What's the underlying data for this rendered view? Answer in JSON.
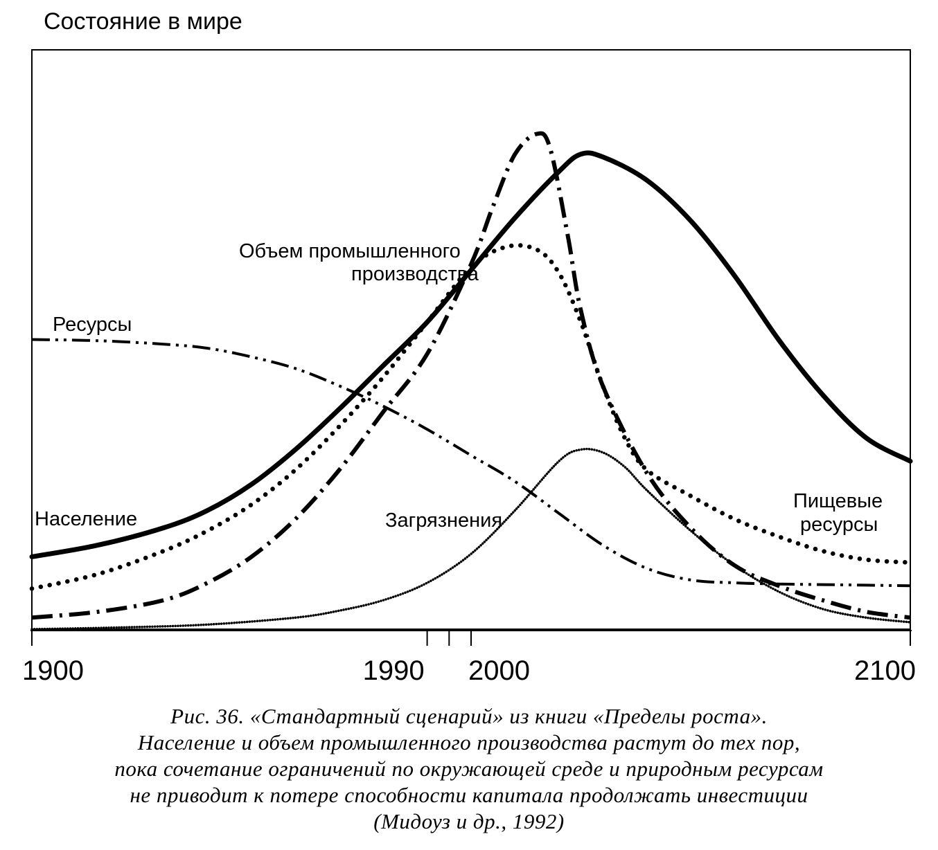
{
  "chart_data": {
    "type": "line",
    "title": "",
    "ylabel": "Состояние в мире",
    "xlabel": "",
    "xlim": [
      1900,
      2100
    ],
    "ylim": [
      0,
      1
    ],
    "x_ticks": [
      1900,
      1990,
      1995,
      2000,
      2100
    ],
    "x_tick_labels": [
      "1900",
      "1990",
      "",
      "2000",
      "2100"
    ],
    "grid": false,
    "legend": "none (series labeled directly on chart)",
    "series": [
      {
        "name": "Население",
        "style": "solid-thick",
        "x": [
          1900,
          1915,
          1930,
          1940,
          1950,
          1960,
          1970,
          1980,
          1990,
          2000,
          2010,
          2020,
          2025,
          2030,
          2040,
          2050,
          2060,
          2070,
          2080,
          2090,
          2100
        ],
        "y": [
          0.125,
          0.145,
          0.175,
          0.205,
          0.25,
          0.31,
          0.38,
          0.455,
          0.53,
          0.62,
          0.71,
          0.79,
          0.82,
          0.815,
          0.775,
          0.705,
          0.61,
          0.5,
          0.405,
          0.33,
          0.29
        ]
      },
      {
        "name": "Пищевые ресурсы",
        "style": "dotted",
        "x": [
          1900,
          1915,
          1930,
          1940,
          1950,
          1960,
          1970,
          1980,
          1990,
          2000,
          2008,
          2015,
          2020,
          2025,
          2030,
          2035,
          2040,
          2050,
          2060,
          2070,
          2080,
          2090,
          2100
        ],
        "y": [
          0.07,
          0.095,
          0.135,
          0.17,
          0.215,
          0.275,
          0.35,
          0.435,
          0.53,
          0.625,
          0.66,
          0.655,
          0.615,
          0.53,
          0.42,
          0.33,
          0.275,
          0.23,
          0.19,
          0.16,
          0.135,
          0.12,
          0.115
        ]
      },
      {
        "name": "Объем промышленного производства",
        "style": "dash-dot-thick",
        "x": [
          1900,
          1915,
          1930,
          1940,
          1950,
          1960,
          1970,
          1980,
          1990,
          2000,
          2005,
          2010,
          2015,
          2018,
          2022,
          2025,
          2030,
          2040,
          2050,
          2060,
          2070,
          2080,
          2090,
          2100
        ],
        "y": [
          0.02,
          0.03,
          0.05,
          0.08,
          0.125,
          0.19,
          0.275,
          0.375,
          0.475,
          0.63,
          0.73,
          0.82,
          0.855,
          0.83,
          0.68,
          0.55,
          0.42,
          0.27,
          0.175,
          0.11,
          0.075,
          0.05,
          0.03,
          0.02
        ]
      },
      {
        "name": "Ресурсы",
        "style": "dash-dot-dot",
        "x": [
          1900,
          1915,
          1930,
          1940,
          1950,
          1960,
          1970,
          1980,
          1990,
          2000,
          2010,
          2020,
          2030,
          2040,
          2050,
          2060,
          2070,
          2080,
          2090,
          2100
        ],
        "y": [
          0.5,
          0.498,
          0.492,
          0.485,
          0.47,
          0.45,
          0.42,
          0.385,
          0.345,
          0.3,
          0.255,
          0.2,
          0.145,
          0.105,
          0.085,
          0.08,
          0.078,
          0.077,
          0.076,
          0.075
        ]
      },
      {
        "name": "Загрязнения",
        "style": "fine-dotted",
        "x": [
          1900,
          1920,
          1940,
          1960,
          1970,
          1980,
          1990,
          2000,
          2010,
          2020,
          2025,
          2030,
          2035,
          2040,
          2050,
          2060,
          2070,
          2080,
          2090,
          2100
        ],
        "y": [
          0.0,
          0.003,
          0.008,
          0.02,
          0.032,
          0.05,
          0.08,
          0.13,
          0.205,
          0.29,
          0.31,
          0.305,
          0.28,
          0.24,
          0.17,
          0.11,
          0.065,
          0.035,
          0.02,
          0.012
        ]
      }
    ]
  },
  "labels": {
    "population": "Население",
    "food": [
      "Пищевые",
      "ресурсы"
    ],
    "industry": [
      "Объем промышленного",
      "производства"
    ],
    "resources": "Ресурсы",
    "pollution": "Загрязнения"
  },
  "caption": [
    "Рис. 36. «Стандартный сценарий» из книги «Пределы роста».",
    "Население и объем промышленного производства растут до тех пор,",
    "пока сочетание ограничений по окружающей среде и природным ресурсам",
    "не приводит к потере способности капитала продолжать инвестиции",
    "(Мидоуз и др., 1992)"
  ],
  "colors": {
    "ink": "#000000",
    "background": "#ffffff"
  }
}
